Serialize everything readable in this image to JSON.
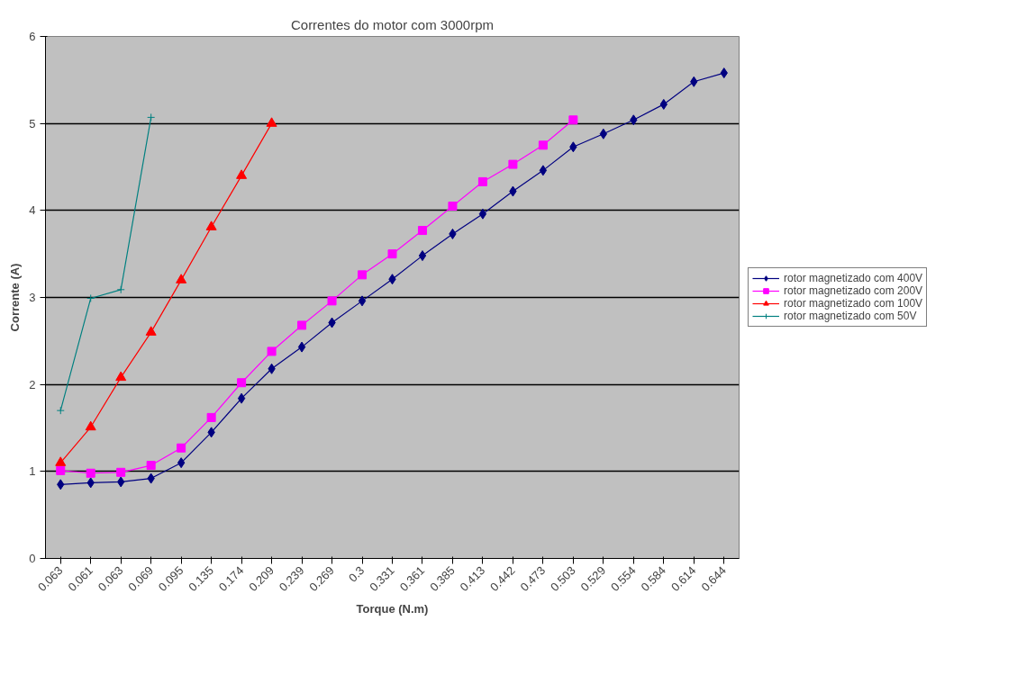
{
  "chart_data": {
    "type": "line",
    "title": "Correntes do motor com 3000rpm",
    "xlabel": "Torque (N.m)",
    "ylabel": "Corrente (A)",
    "categories": [
      "0.063",
      "0.061",
      "0.063",
      "0.069",
      "0.095",
      "0.135",
      "0.174",
      "0.209",
      "0.239",
      "0.269",
      "0.3",
      "0.331",
      "0.361",
      "0.385",
      "0.413",
      "0.442",
      "0.473",
      "0.503",
      "0.529",
      "0.554",
      "0.584",
      "0.614",
      "0.644"
    ],
    "series": [
      {
        "name": "rotor magnetizado com 400V",
        "color": "#000080",
        "marker": "diamond",
        "values": [
          0.85,
          0.87,
          0.88,
          0.92,
          1.1,
          1.45,
          1.84,
          2.18,
          2.43,
          2.71,
          2.96,
          3.21,
          3.48,
          3.73,
          3.96,
          4.22,
          4.46,
          4.73,
          4.88,
          5.04,
          5.22,
          5.48,
          5.58
        ]
      },
      {
        "name": "rotor magnetizado com 200V",
        "color": "#ff00ff",
        "marker": "square",
        "values": [
          1.01,
          0.98,
          0.99,
          1.07,
          1.27,
          1.62,
          2.02,
          2.38,
          2.68,
          2.96,
          3.26,
          3.5,
          3.77,
          4.05,
          4.33,
          4.53,
          4.75,
          5.04,
          null,
          null,
          null,
          null,
          null
        ]
      },
      {
        "name": "rotor magnetizado com 100V",
        "color": "#ff0000",
        "marker": "triangle",
        "values": [
          1.1,
          1.51,
          2.08,
          2.6,
          3.2,
          3.81,
          4.4,
          5.0,
          null,
          null,
          null,
          null,
          null,
          null,
          null,
          null,
          null,
          null,
          null,
          null,
          null,
          null,
          null
        ]
      },
      {
        "name": "rotor magnetizado com 50V",
        "color": "#008080",
        "marker": "cross",
        "values": [
          1.7,
          2.99,
          3.09,
          5.07,
          null,
          null,
          null,
          null,
          null,
          null,
          null,
          null,
          null,
          null,
          null,
          null,
          null,
          null,
          null,
          null,
          null,
          null,
          null
        ]
      }
    ],
    "ylim": [
      0,
      6
    ],
    "yticks": [
      0,
      1,
      2,
      3,
      4,
      5,
      6
    ],
    "grid": "y",
    "legend": "right"
  }
}
